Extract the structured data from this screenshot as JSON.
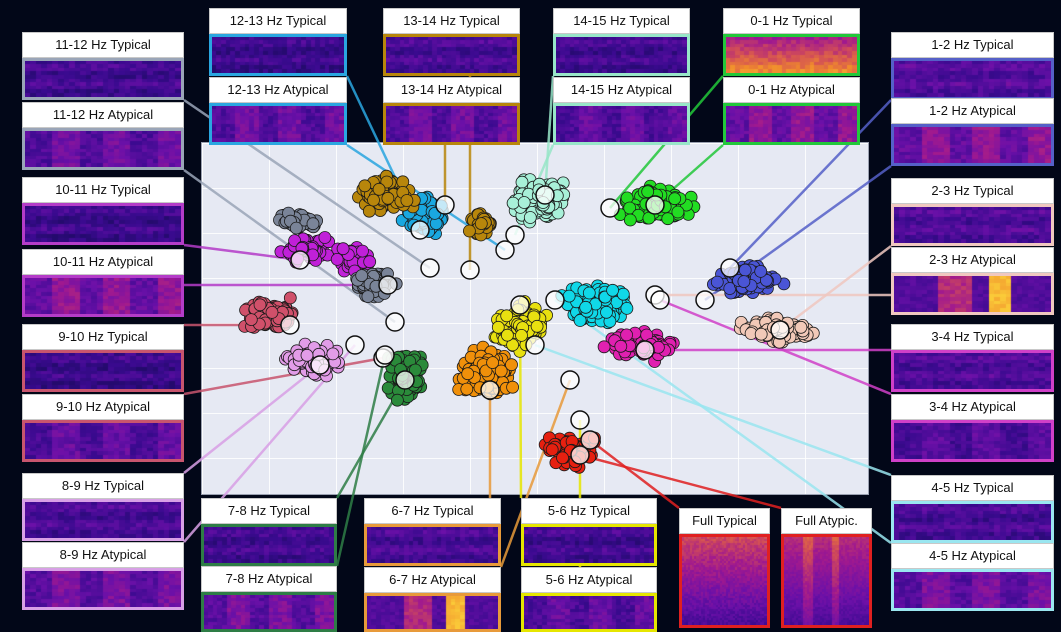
{
  "background": "#020718",
  "plot_background": "#e6e9f3",
  "colormap": [
    "#1a0a5e",
    "#3a0a8f",
    "#6b10a8",
    "#a0198f",
    "#d04a5a",
    "#f08a2c",
    "#fcd43a"
  ],
  "panels": [
    {
      "id": "11-12-typ",
      "label": "11-12 Hz Typical",
      "color": "#9aa5b8",
      "pattern": "rows",
      "intensity": 0.25
    },
    {
      "id": "11-12-atyp",
      "label": "11-12 Hz Atypical",
      "color": "#9aa5b8",
      "pattern": "blocks",
      "intensity": 0.4
    },
    {
      "id": "10-11-typ",
      "label": "10-11 Hz Typical",
      "color": "#b43cc8",
      "pattern": "rows",
      "intensity": 0.2
    },
    {
      "id": "10-11-atyp",
      "label": "10-11 Hz Atypical",
      "color": "#b43cc8",
      "pattern": "blocks",
      "intensity": 0.55
    },
    {
      "id": "9-10-typ",
      "label": "9-10 Hz Typical",
      "color": "#c8556e",
      "pattern": "rows",
      "intensity": 0.2
    },
    {
      "id": "9-10-atyp",
      "label": "9-10 Hz Atypical",
      "color": "#c8556e",
      "pattern": "blocks",
      "intensity": 0.35
    },
    {
      "id": "8-9-typ",
      "label": "8-9 Hz Typical",
      "color": "#d8a0e6",
      "pattern": "rows",
      "intensity": 0.3
    },
    {
      "id": "8-9-atyp",
      "label": "8-9 Hz Atypical",
      "color": "#d8a0e6",
      "pattern": "blocks",
      "intensity": 0.45
    },
    {
      "id": "12-13-typ",
      "label": "12-13 Hz Typical",
      "color": "#2aa6e0",
      "pattern": "rows",
      "intensity": 0.2
    },
    {
      "id": "12-13-atyp",
      "label": "12-13 Hz Atypical",
      "color": "#2aa6e0",
      "pattern": "blocks",
      "intensity": 0.4
    },
    {
      "id": "13-14-typ",
      "label": "13-14 Hz Typical",
      "color": "#b8860b",
      "pattern": "rows",
      "intensity": 0.3
    },
    {
      "id": "13-14-atyp",
      "label": "13-14 Hz Atypical",
      "color": "#b8860b",
      "pattern": "blocks",
      "intensity": 0.4
    },
    {
      "id": "14-15-typ",
      "label": "14-15 Hz Typical",
      "color": "#98e6c8",
      "pattern": "rows",
      "intensity": 0.25
    },
    {
      "id": "14-15-atyp",
      "label": "14-15 Hz Atypical",
      "color": "#98e6c8",
      "pattern": "blocks",
      "intensity": 0.35
    },
    {
      "id": "0-1-typ",
      "label": "0-1 Hz Typical",
      "color": "#22c83a",
      "pattern": "rows",
      "intensity": 0.85
    },
    {
      "id": "0-1-atyp",
      "label": "0-1 Hz Atypical",
      "color": "#22c83a",
      "pattern": "blocks",
      "intensity": 0.55
    },
    {
      "id": "1-2-typ",
      "label": "1-2 Hz Typical",
      "color": "#5560c8",
      "pattern": "rows",
      "intensity": 0.4
    },
    {
      "id": "1-2-atyp",
      "label": "1-2 Hz Atypical",
      "color": "#5560c8",
      "pattern": "blocks",
      "intensity": 0.55
    },
    {
      "id": "2-3-typ",
      "label": "2-3 Hz Typical",
      "color": "#f0c8c0",
      "pattern": "rows",
      "intensity": 0.35
    },
    {
      "id": "2-3-atyp",
      "label": "2-3 Hz Atypical",
      "color": "#f0c8c0",
      "pattern": "hot",
      "intensity": 0.8
    },
    {
      "id": "3-4-typ",
      "label": "3-4 Hz Typical",
      "color": "#d040c8",
      "pattern": "rows",
      "intensity": 0.35
    },
    {
      "id": "3-4-atyp",
      "label": "3-4 Hz Atypical",
      "color": "#d040c8",
      "pattern": "blocks",
      "intensity": 0.3
    },
    {
      "id": "4-5-typ",
      "label": "4-5 Hz Typical",
      "color": "#9ae6f0",
      "pattern": "rows",
      "intensity": 0.3
    },
    {
      "id": "4-5-atyp",
      "label": "4-5 Hz Atypical",
      "color": "#9ae6f0",
      "pattern": "blocks",
      "intensity": 0.45
    },
    {
      "id": "7-8-typ",
      "label": "7-8 Hz Typical",
      "color": "#2e7d46",
      "pattern": "rows",
      "intensity": 0.25
    },
    {
      "id": "7-8-atyp",
      "label": "7-8 Hz Atypical",
      "color": "#2e7d46",
      "pattern": "blocks",
      "intensity": 0.45
    },
    {
      "id": "6-7-typ",
      "label": "6-7 Hz Typical",
      "color": "#e89a3a",
      "pattern": "rows",
      "intensity": 0.3
    },
    {
      "id": "6-7-atyp",
      "label": "6-7 Hz Atypical",
      "color": "#e89a3a",
      "pattern": "hot",
      "intensity": 0.75
    },
    {
      "id": "5-6-typ",
      "label": "5-6 Hz Typical",
      "color": "#e6e600",
      "pattern": "rows",
      "intensity": 0.25
    },
    {
      "id": "5-6-atyp",
      "label": "5-6 Hz Atypical",
      "color": "#e6e600",
      "pattern": "blocks",
      "intensity": 0.35
    },
    {
      "id": "full-typ",
      "label": "Full Typical",
      "color": "#e02020",
      "pattern": "full",
      "intensity": 0.6
    },
    {
      "id": "full-atyp",
      "label": "Full Atypic.",
      "color": "#e02020",
      "pattern": "fullv",
      "intensity": 0.6
    }
  ],
  "clusters": [
    {
      "id": "0-1",
      "color": "#22dd22"
    },
    {
      "id": "1-2",
      "color": "#4a55d6"
    },
    {
      "id": "2-3",
      "color": "#f2c9b8"
    },
    {
      "id": "3-4",
      "color": "#e020b0"
    },
    {
      "id": "4-5",
      "color": "#10d8e8"
    },
    {
      "id": "5-6",
      "color": "#e8e010"
    },
    {
      "id": "6-7",
      "color": "#f0900a"
    },
    {
      "id": "7-8",
      "color": "#2a8a3a"
    },
    {
      "id": "8-9",
      "color": "#e29ce8"
    },
    {
      "id": "9-10",
      "color": "#d0506a"
    },
    {
      "id": "10-11",
      "color": "#c020d8"
    },
    {
      "id": "11-12",
      "color": "#7a8498"
    },
    {
      "id": "12-13",
      "color": "#1aa8e0"
    },
    {
      "id": "13-14",
      "color": "#b8860b"
    },
    {
      "id": "14-15",
      "color": "#a8f0d8"
    },
    {
      "id": "full",
      "color": "#e62010"
    }
  ]
}
